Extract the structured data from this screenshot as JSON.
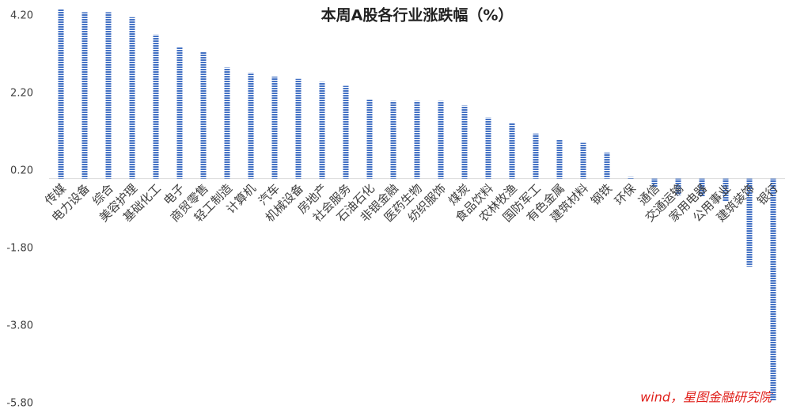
{
  "chart_data": {
    "type": "bar",
    "title": "本周A股各行业涨跌幅（%）",
    "categories": [
      "传媒",
      "电力设备",
      "综合",
      "美容护理",
      "基础化工",
      "电子",
      "商贸零售",
      "轻工制造",
      "计算机",
      "汽车",
      "机械设备",
      "房地产",
      "社会服务",
      "石油石化",
      "非银金融",
      "医药生物",
      "纺织服饰",
      "煤炭",
      "食品饮料",
      "农林牧渔",
      "国防军工",
      "有色金属",
      "建筑材料",
      "钢铁",
      "环保",
      "通信",
      "交通运输",
      "家用电器",
      "公用事业",
      "建筑装饰",
      "银行"
    ],
    "values": [
      4.37,
      4.29,
      4.29,
      4.16,
      3.71,
      3.39,
      3.27,
      2.86,
      2.73,
      2.63,
      2.57,
      2.49,
      2.39,
      2.04,
      2.0,
      2.0,
      2.0,
      1.88,
      1.57,
      1.43,
      1.16,
      1.0,
      0.92,
      0.67,
      0.04,
      -0.22,
      -0.43,
      -0.47,
      -0.59,
      -2.27,
      -5.73
    ],
    "color": "#4472c4",
    "ylim": [
      -5.8,
      4.4
    ],
    "yticks": [
      {
        "value": -5.8,
        "label": "-5.80"
      },
      {
        "value": -3.8,
        "label": "-3.80"
      },
      {
        "value": -1.8,
        "label": "-1.80"
      },
      {
        "value": 0.2,
        "label": "0.20"
      },
      {
        "value": 2.2,
        "label": "2.20"
      },
      {
        "value": 4.2,
        "label": "4.20"
      }
    ],
    "source": "wind，星图金融研究院"
  }
}
